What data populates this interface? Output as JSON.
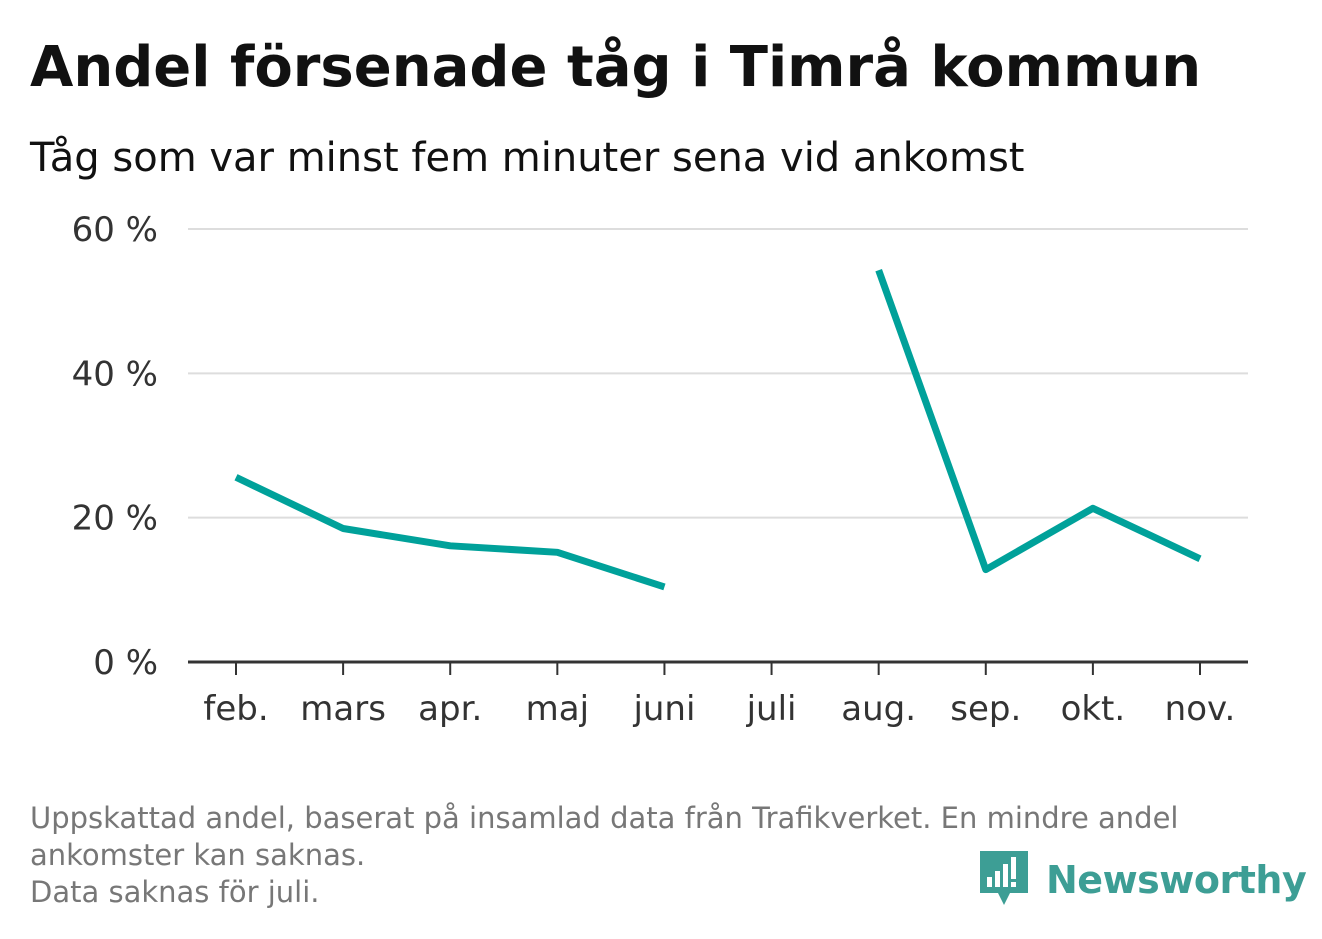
{
  "header": {
    "title": "Andel försenade tåg i Timrå kommun",
    "subtitle": "Tåg som var minst fem minuter sena vid ankomst"
  },
  "chart_data": {
    "type": "line",
    "title": "Andel försenade tåg i Timrå kommun",
    "subtitle": "Tåg som var minst fem minuter sena vid ankomst",
    "xlabel": "",
    "ylabel": "",
    "categories": [
      "feb.",
      "mars",
      "apr.",
      "maj",
      "juni",
      "juli",
      "aug.",
      "sep.",
      "okt.",
      "nov."
    ],
    "series": [
      {
        "values": [
          25.6,
          18.5,
          16.1,
          15.2,
          10.4,
          null,
          54.3,
          12.8,
          21.3,
          14.3
        ],
        "color": "#00a19a"
      }
    ],
    "yticks": [
      {
        "value": 0,
        "label": "0 %"
      },
      {
        "value": 20,
        "label": "20 %"
      },
      {
        "value": 40,
        "label": "40 %"
      },
      {
        "value": 60,
        "label": "60 %"
      }
    ],
    "ylim": [
      0,
      60
    ],
    "grid": true,
    "legend": "none",
    "colors": {
      "line": "#00a19a",
      "grid": "#dddddd",
      "axis": "#333333"
    }
  },
  "footer": {
    "note_line_1": "Uppskattad andel, baserat på insamlad data från Trafikverket. En mindre andel",
    "note_line_2": "ankomster kan saknas.",
    "note_line_3": "Data saknas för juli.",
    "brand": "Newsworthy",
    "brand_icon": "newsworthy-logo-icon",
    "brand_color": "#3d9e95"
  }
}
